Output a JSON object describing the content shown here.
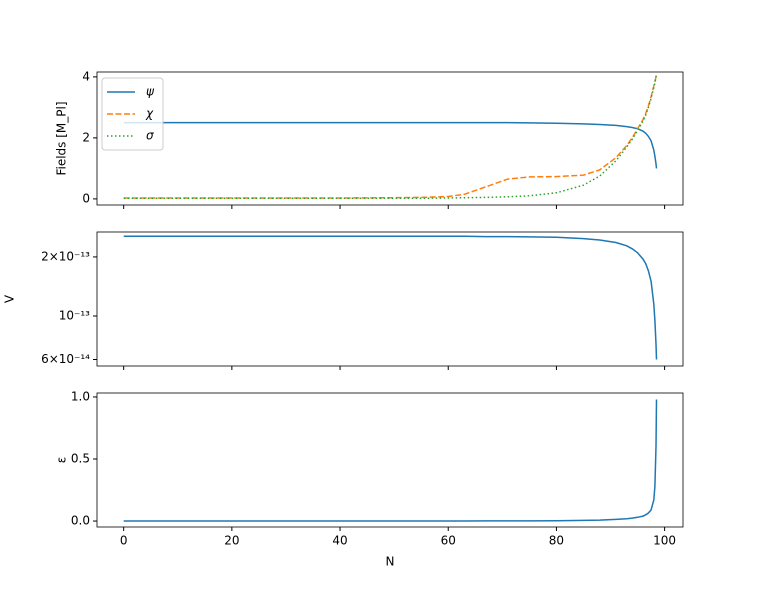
{
  "chart_data": [
    {
      "type": "line",
      "ylabel": "Fields [M_Pl]",
      "legend": "upper left",
      "xticklabels": false,
      "x": [
        0,
        10,
        20,
        30,
        40,
        50,
        55,
        60,
        63,
        67,
        71,
        75,
        80,
        85,
        88,
        91,
        93,
        94,
        95,
        96,
        96.5,
        97,
        97.5,
        98,
        98.2,
        98.4,
        98.5
      ],
      "xlim": [
        -4.93,
        103.4
      ],
      "xticks": [
        0,
        20,
        40,
        60,
        80,
        100
      ],
      "ylim": [
        -0.2,
        4.16
      ],
      "yticks": [
        0,
        2,
        4
      ],
      "series": [
        {
          "name": "ψ",
          "color": "#1f77b4",
          "linestyle": "solid",
          "values": [
            2.5,
            2.5,
            2.5,
            2.5,
            2.5,
            2.5,
            2.5,
            2.5,
            2.5,
            2.5,
            2.5,
            2.49,
            2.48,
            2.46,
            2.44,
            2.41,
            2.37,
            2.34,
            2.3,
            2.22,
            2.15,
            2.05,
            1.9,
            1.6,
            1.4,
            1.15,
            1.0
          ]
        },
        {
          "name": "χ",
          "color": "#ff7f0e",
          "linestyle": "dashed",
          "values": [
            0.03,
            0.03,
            0.03,
            0.03,
            0.03,
            0.04,
            0.05,
            0.08,
            0.15,
            0.4,
            0.65,
            0.72,
            0.73,
            0.78,
            0.95,
            1.35,
            1.75,
            2.0,
            2.3,
            2.6,
            2.8,
            3.05,
            3.35,
            3.7,
            3.85,
            4.0,
            4.1
          ]
        },
        {
          "name": "σ",
          "color": "#2ca02c",
          "linestyle": "dotted",
          "values": [
            0.02,
            0.02,
            0.02,
            0.02,
            0.02,
            0.02,
            0.02,
            0.03,
            0.04,
            0.05,
            0.07,
            0.1,
            0.2,
            0.45,
            0.75,
            1.25,
            1.7,
            1.95,
            2.25,
            2.55,
            2.75,
            3.0,
            3.3,
            3.65,
            3.8,
            4.0,
            4.1
          ]
        }
      ]
    },
    {
      "type": "line",
      "ylabel": "V",
      "log_y": true,
      "xticklabels": false,
      "x": [
        0,
        10,
        20,
        30,
        40,
        50,
        55,
        60,
        63,
        67,
        71,
        75,
        80,
        85,
        88,
        91,
        93,
        94,
        95,
        96,
        96.5,
        97,
        97.5,
        98,
        98.2,
        98.4,
        98.5
      ],
      "xlim": [
        -4.93,
        103.4
      ],
      "xticks": [
        0,
        20,
        40,
        60,
        80,
        100
      ],
      "ylim": [
        5.56e-14,
        2.68e-13
      ],
      "yticks": [
        {
          "value": 6e-14,
          "label": "6×10⁻¹⁴"
        },
        {
          "value": 1e-13,
          "label": "10⁻¹³"
        },
        {
          "value": 2e-13,
          "label": "2×10⁻¹³"
        }
      ],
      "series": [
        {
          "color": "#1f77b4",
          "linestyle": "solid",
          "values": [
            2.55e-13,
            2.55e-13,
            2.55e-13,
            2.55e-13,
            2.55e-13,
            2.55e-13,
            2.55e-13,
            2.55e-13,
            2.55e-13,
            2.54e-13,
            2.54e-13,
            2.53e-13,
            2.52e-13,
            2.48e-13,
            2.44e-13,
            2.37e-13,
            2.28e-13,
            2.2e-13,
            2.1e-13,
            1.95e-13,
            1.85e-13,
            1.7e-13,
            1.5e-13,
            1.15e-13,
            9.5e-14,
            7.2e-14,
            6e-14
          ]
        }
      ]
    },
    {
      "type": "line",
      "ylabel": "ε",
      "xlabel": "N",
      "xticklabels": true,
      "x": [
        0,
        10,
        20,
        30,
        40,
        50,
        55,
        60,
        63,
        67,
        71,
        75,
        80,
        85,
        88,
        91,
        93,
        94,
        95,
        96,
        96.5,
        97,
        97.5,
        98,
        98.2,
        98.4,
        98.5
      ],
      "xlim": [
        -4.93,
        103.4
      ],
      "xticks": [
        0,
        20,
        40,
        60,
        80,
        100
      ],
      "ylim": [
        -0.048,
        1.032
      ],
      "yticks": [
        {
          "value": 0,
          "label": "0.0"
        },
        {
          "value": 0.5,
          "label": "0.5"
        },
        {
          "value": 1,
          "label": "1.0"
        }
      ],
      "series": [
        {
          "color": "#1f77b4",
          "linestyle": "solid",
          "values": [
            0,
            0,
            0,
            0,
            0,
            0,
            0,
            0,
            0,
            0.001,
            0.001,
            0.001,
            0.002,
            0.005,
            0.008,
            0.013,
            0.019,
            0.024,
            0.03,
            0.04,
            0.05,
            0.065,
            0.09,
            0.17,
            0.28,
            0.6,
            0.98
          ]
        }
      ]
    }
  ]
}
